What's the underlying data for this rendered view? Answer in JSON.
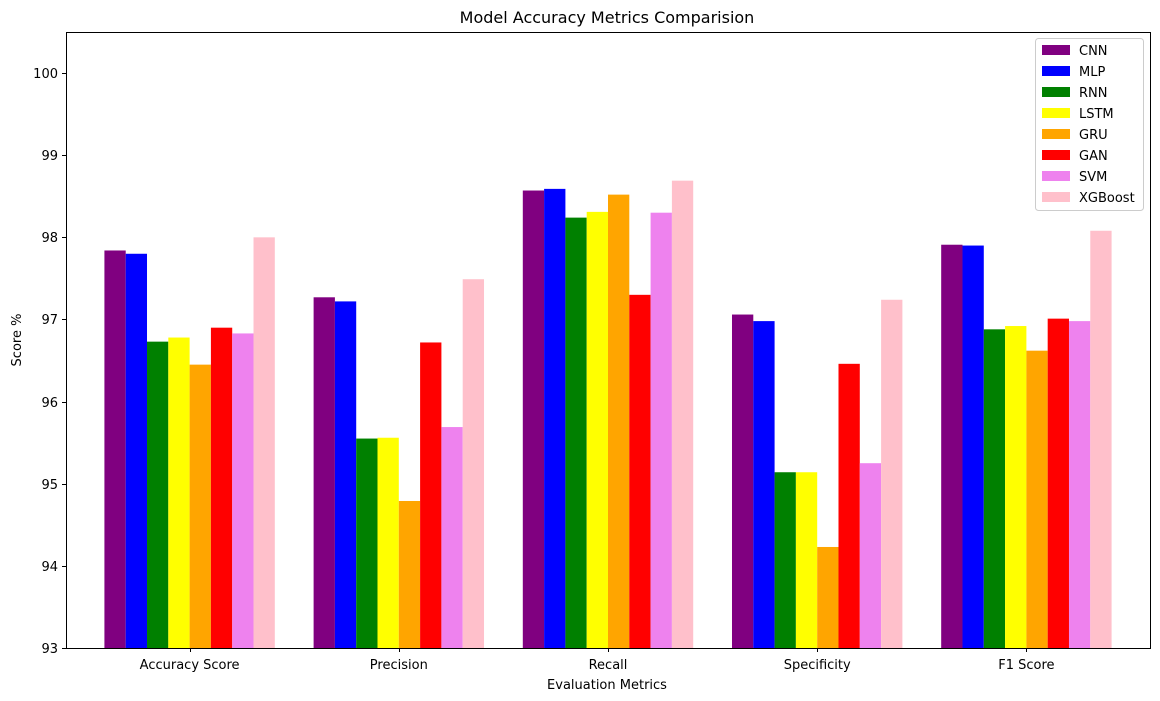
{
  "chart_data": {
    "type": "bar",
    "title": "Model Accuracy Metrics Comparision",
    "xlabel": "Evaluation Metrics",
    "ylabel": "Score %",
    "ylim": [
      93,
      100.5
    ],
    "yticks": [
      93,
      94,
      95,
      96,
      97,
      98,
      99,
      100
    ],
    "grid": false,
    "legend_position": "top-right",
    "categories": [
      "Accuracy Score",
      "Precision",
      "Recall",
      "Specificity",
      "F1 Score"
    ],
    "series": [
      {
        "name": "CNN",
        "color": "#800080",
        "values": [
          97.84,
          97.27,
          98.57,
          97.06,
          97.91
        ]
      },
      {
        "name": "MLP",
        "color": "#0000ff",
        "values": [
          97.8,
          97.22,
          98.59,
          96.98,
          97.9
        ]
      },
      {
        "name": "RNN",
        "color": "#008000",
        "values": [
          96.73,
          95.55,
          98.24,
          95.14,
          96.88
        ]
      },
      {
        "name": "LSTM",
        "color": "#ffff00",
        "values": [
          96.78,
          95.56,
          98.31,
          95.14,
          96.92
        ]
      },
      {
        "name": "GRU",
        "color": "#ffa500",
        "values": [
          96.45,
          94.79,
          98.52,
          94.23,
          96.62
        ]
      },
      {
        "name": "GAN",
        "color": "#ff0000",
        "values": [
          96.9,
          96.72,
          97.3,
          96.46,
          97.01
        ]
      },
      {
        "name": "SVM",
        "color": "#ee82ee",
        "values": [
          96.83,
          95.69,
          98.3,
          95.25,
          96.98
        ]
      },
      {
        "name": "XGBoost",
        "color": "#ffc0cb",
        "values": [
          98.0,
          97.49,
          98.69,
          97.24,
          98.08
        ]
      }
    ]
  }
}
